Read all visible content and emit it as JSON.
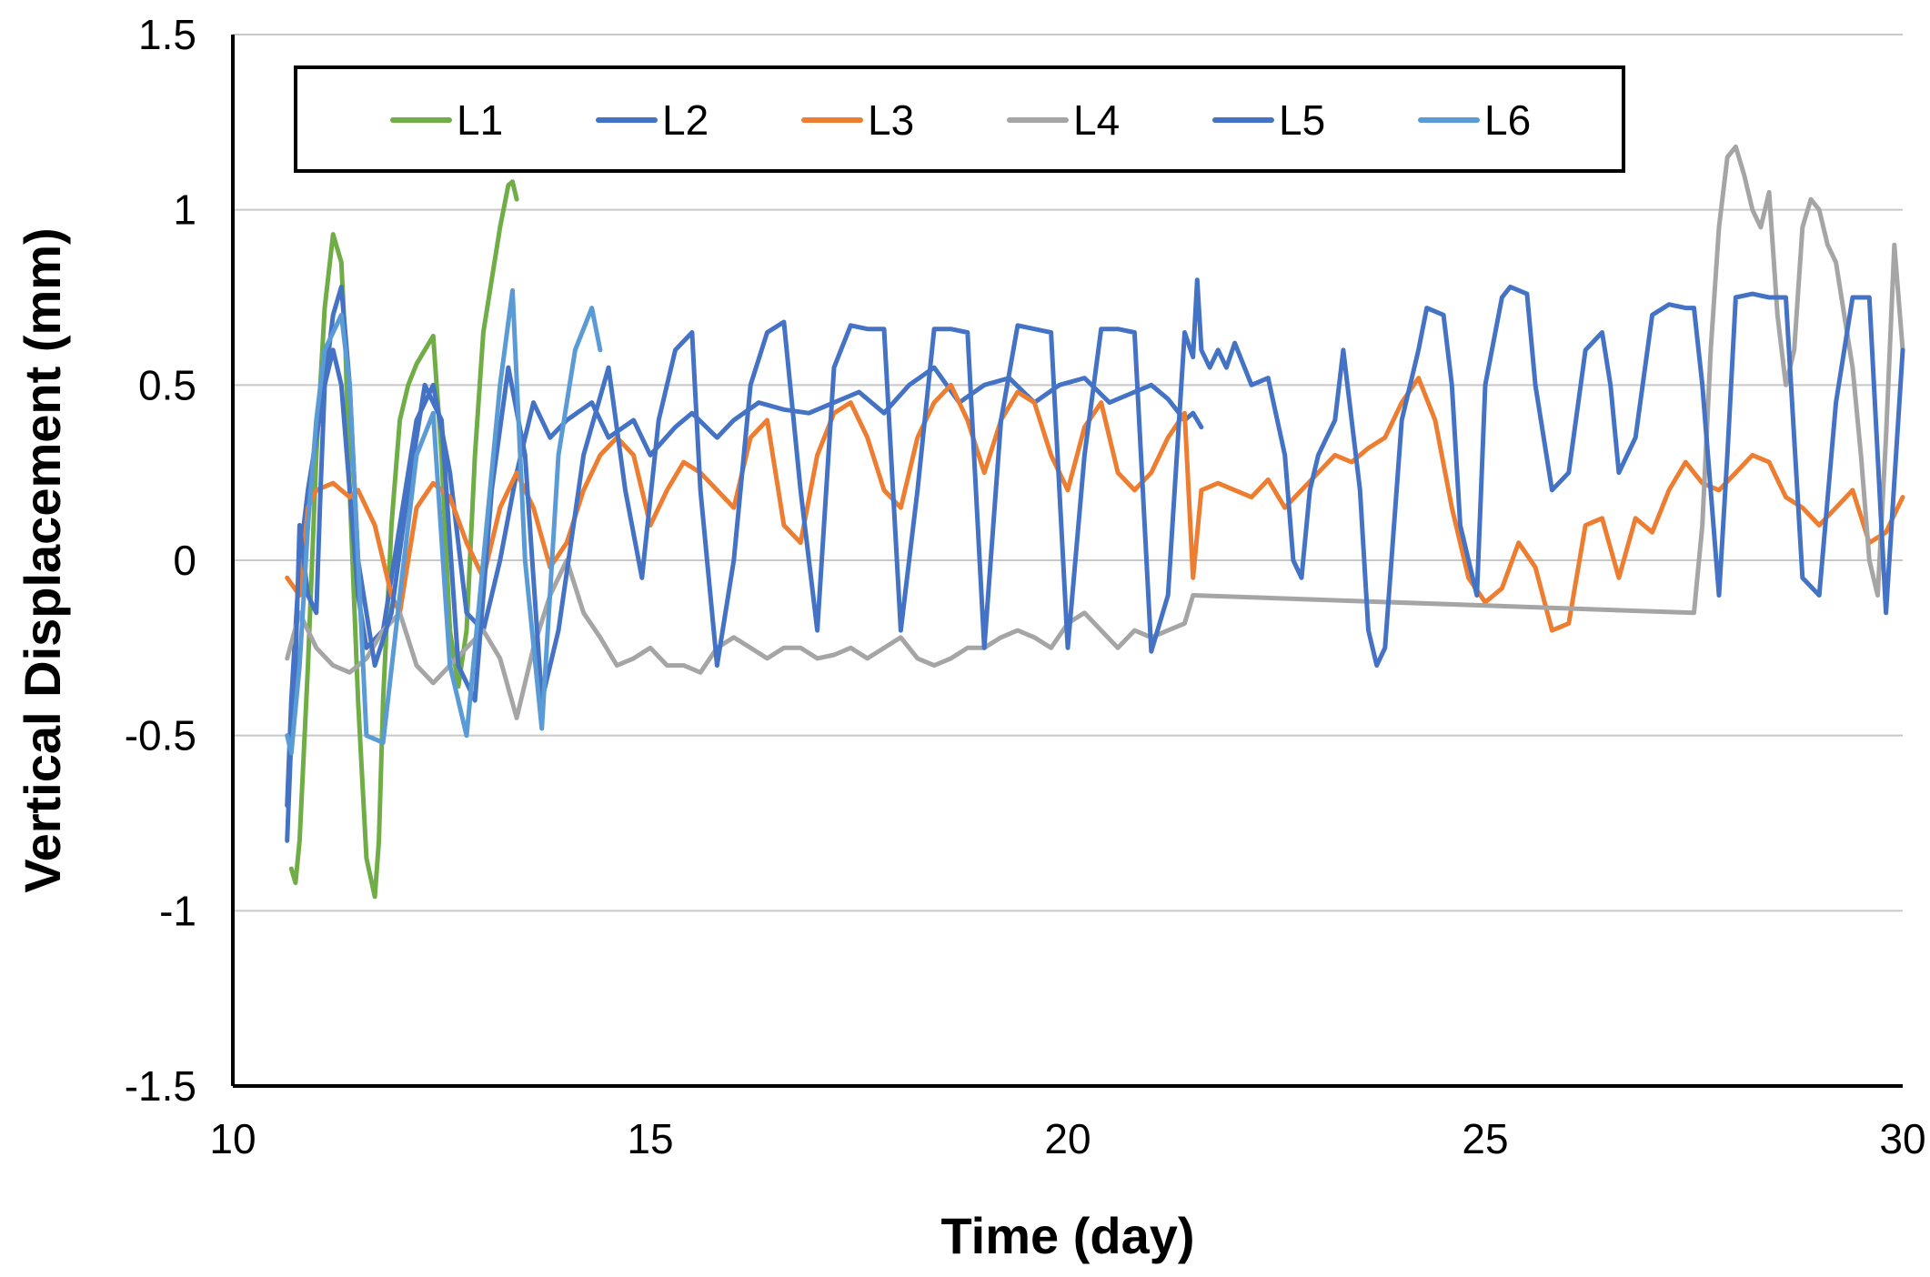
{
  "chart_data": {
    "type": "line",
    "title": "",
    "xlabel": "Time (day)",
    "ylabel": "Vertical Displacement (mm)",
    "xlim": [
      10,
      30
    ],
    "ylim": [
      -1.5,
      1.5
    ],
    "xticks": [
      10,
      15,
      20,
      25,
      30
    ],
    "xtick_labels": [
      "10",
      "15",
      "20",
      "25",
      "30"
    ],
    "yticks": [
      1.5,
      1,
      0.5,
      0,
      -0.5,
      -1,
      -1.5
    ],
    "ytick_labels": [
      "1.5",
      "1",
      "0.5",
      "0",
      "-0.5",
      "-1",
      "-1.5"
    ],
    "grid": true,
    "legend_position": "top",
    "series": [
      {
        "name": "L1",
        "color": "#70AD47",
        "x": [
          10.7,
          10.75,
          10.8,
          10.9,
          11.0,
          11.1,
          11.2,
          11.3,
          11.35,
          11.4,
          11.5,
          11.6,
          11.7,
          11.75,
          11.8,
          11.9,
          12.0,
          12.1,
          12.2,
          12.3,
          12.4,
          12.5,
          12.6,
          12.7,
          12.8,
          12.9,
          13.0,
          13.1,
          13.2,
          13.3,
          13.35,
          13.4
        ],
        "y": [
          -0.88,
          -0.92,
          -0.8,
          -0.3,
          0.3,
          0.72,
          0.93,
          0.85,
          0.6,
          0.2,
          -0.4,
          -0.85,
          -0.96,
          -0.8,
          -0.4,
          0.1,
          0.4,
          0.5,
          0.56,
          0.6,
          0.64,
          0.3,
          -0.2,
          -0.36,
          -0.2,
          0.3,
          0.65,
          0.8,
          0.95,
          1.07,
          1.08,
          1.03
        ]
      },
      {
        "name": "L2",
        "color": "#4472C4",
        "x": [
          10.65,
          10.7,
          10.8,
          10.9,
          11.0,
          11.1,
          11.2,
          11.3,
          11.4,
          11.5,
          11.6,
          11.8,
          12.0,
          12.2,
          12.4,
          12.6,
          12.8,
          13.0,
          13.2,
          13.4,
          13.6,
          13.8,
          14.0,
          14.3,
          14.5,
          14.8,
          15.0,
          15.3,
          15.5,
          15.8,
          16.0,
          16.3,
          16.6,
          16.9,
          17.2,
          17.5,
          17.8,
          18.1,
          18.4,
          18.7,
          19.0,
          19.3,
          19.6,
          19.9,
          20.2,
          20.5,
          20.8,
          21.0,
          21.2,
          21.4,
          21.5,
          21.6
        ],
        "y": [
          -0.7,
          -0.4,
          0.0,
          0.2,
          0.35,
          0.5,
          0.6,
          0.5,
          0.2,
          -0.1,
          -0.25,
          -0.2,
          0.1,
          0.4,
          0.5,
          0.25,
          -0.15,
          -0.2,
          0.0,
          0.25,
          0.45,
          0.35,
          0.4,
          0.45,
          0.35,
          0.4,
          0.3,
          0.38,
          0.42,
          0.35,
          0.4,
          0.45,
          0.43,
          0.42,
          0.45,
          0.48,
          0.42,
          0.5,
          0.55,
          0.45,
          0.5,
          0.52,
          0.45,
          0.5,
          0.52,
          0.45,
          0.48,
          0.5,
          0.46,
          0.4,
          0.42,
          0.38
        ]
      },
      {
        "name": "L3",
        "color": "#ED7D31",
        "x": [
          10.65,
          10.8,
          10.9,
          11.0,
          11.2,
          11.4,
          11.5,
          11.7,
          11.9,
          12.0,
          12.2,
          12.4,
          12.6,
          12.8,
          13.0,
          13.2,
          13.4,
          13.6,
          13.8,
          14.0,
          14.2,
          14.4,
          14.6,
          14.8,
          15.0,
          15.2,
          15.4,
          15.6,
          15.8,
          16.0,
          16.2,
          16.4,
          16.6,
          16.8,
          17.0,
          17.2,
          17.4,
          17.6,
          17.8,
          18.0,
          18.2,
          18.4,
          18.6,
          18.8,
          19.0,
          19.2,
          19.4,
          19.6,
          19.8,
          20.0,
          20.2,
          20.4,
          20.6,
          20.8,
          21.0,
          21.2,
          21.4,
          21.5,
          21.6,
          21.8,
          22.0,
          22.2,
          22.4,
          22.6,
          22.8,
          23.0,
          23.2,
          23.4,
          23.6,
          23.8,
          24.0,
          24.2,
          24.4,
          24.6,
          24.8,
          25.0,
          25.2,
          25.4,
          25.6,
          25.8,
          26.0,
          26.2,
          26.4,
          26.6,
          26.8,
          27.0,
          27.2,
          27.4,
          27.6,
          27.8,
          28.0,
          28.2,
          28.4,
          28.6,
          28.8,
          29.0,
          29.2,
          29.4,
          29.6,
          29.8,
          30.0
        ],
        "y": [
          -0.05,
          -0.1,
          0.15,
          0.2,
          0.22,
          0.18,
          0.2,
          0.1,
          -0.1,
          -0.15,
          0.15,
          0.22,
          0.18,
          0.05,
          -0.05,
          0.15,
          0.25,
          0.15,
          -0.02,
          0.05,
          0.2,
          0.3,
          0.35,
          0.3,
          0.1,
          0.2,
          0.28,
          0.25,
          0.2,
          0.15,
          0.35,
          0.4,
          0.1,
          0.05,
          0.3,
          0.42,
          0.45,
          0.35,
          0.2,
          0.15,
          0.35,
          0.45,
          0.5,
          0.4,
          0.25,
          0.4,
          0.48,
          0.45,
          0.3,
          0.2,
          0.38,
          0.45,
          0.25,
          0.2,
          0.25,
          0.35,
          0.42,
          -0.05,
          0.2,
          0.22,
          0.2,
          0.18,
          0.23,
          0.15,
          0.2,
          0.25,
          0.3,
          0.28,
          0.32,
          0.35,
          0.45,
          0.52,
          0.4,
          0.15,
          -0.05,
          -0.12,
          -0.08,
          0.05,
          -0.02,
          -0.2,
          -0.18,
          0.1,
          0.12,
          -0.05,
          0.12,
          0.08,
          0.2,
          0.28,
          0.22,
          0.2,
          0.25,
          0.3,
          0.28,
          0.18,
          0.15,
          0.1,
          0.15,
          0.2,
          0.05,
          0.08,
          0.18
        ]
      },
      {
        "name": "L4",
        "color": "#A5A5A5",
        "x": [
          10.65,
          10.8,
          11.0,
          11.2,
          11.4,
          11.6,
          11.8,
          12.0,
          12.2,
          12.4,
          12.6,
          12.8,
          13.0,
          13.2,
          13.4,
          13.6,
          13.8,
          14.0,
          14.2,
          14.4,
          14.6,
          14.8,
          15.0,
          15.2,
          15.4,
          15.6,
          15.8,
          16.0,
          16.2,
          16.4,
          16.6,
          16.8,
          17.0,
          17.2,
          17.4,
          17.6,
          17.8,
          18.0,
          18.2,
          18.4,
          18.6,
          18.8,
          19.0,
          19.2,
          19.4,
          19.6,
          19.8,
          20.0,
          20.2,
          20.4,
          20.6,
          20.8,
          21.0,
          21.2,
          21.4,
          21.5,
          27.5,
          27.6,
          27.7,
          27.8,
          27.9,
          28.0,
          28.1,
          28.2,
          28.3,
          28.4,
          28.5,
          28.6,
          28.7,
          28.8,
          28.9,
          29.0,
          29.1,
          29.2,
          29.3,
          29.4,
          29.5,
          29.6,
          29.7,
          29.8,
          29.9,
          30.0
        ],
        "y": [
          -0.28,
          -0.15,
          -0.25,
          -0.3,
          -0.32,
          -0.28,
          -0.2,
          -0.15,
          -0.3,
          -0.35,
          -0.3,
          -0.25,
          -0.2,
          -0.28,
          -0.45,
          -0.25,
          -0.1,
          0.0,
          -0.15,
          -0.22,
          -0.3,
          -0.28,
          -0.25,
          -0.3,
          -0.3,
          -0.32,
          -0.25,
          -0.22,
          -0.25,
          -0.28,
          -0.25,
          -0.25,
          -0.28,
          -0.27,
          -0.25,
          -0.28,
          -0.25,
          -0.22,
          -0.28,
          -0.3,
          -0.28,
          -0.25,
          -0.25,
          -0.22,
          -0.2,
          -0.22,
          -0.25,
          -0.18,
          -0.15,
          -0.2,
          -0.25,
          -0.2,
          -0.22,
          -0.2,
          -0.18,
          -0.1,
          -0.15,
          0.1,
          0.6,
          0.95,
          1.15,
          1.18,
          1.1,
          1.0,
          0.95,
          1.05,
          0.7,
          0.5,
          0.6,
          0.95,
          1.03,
          1.0,
          0.9,
          0.85,
          0.7,
          0.55,
          0.3,
          0.0,
          -0.1,
          0.35,
          0.9,
          0.6
        ]
      },
      {
        "name": "L5",
        "color": "#4472C4",
        "x": [
          10.65,
          10.7,
          10.75,
          10.8,
          10.9,
          11.0,
          11.05,
          11.1,
          11.2,
          11.3,
          11.4,
          11.5,
          11.7,
          11.9,
          12.1,
          12.3,
          12.5,
          12.7,
          12.9,
          13.1,
          13.3,
          13.5,
          13.7,
          13.9,
          14.2,
          14.5,
          14.7,
          14.9,
          15.1,
          15.3,
          15.5,
          15.6,
          15.8,
          16.0,
          16.2,
          16.4,
          16.6,
          16.8,
          17.0,
          17.2,
          17.4,
          17.6,
          17.8,
          18.0,
          18.2,
          18.4,
          18.6,
          18.8,
          19.0,
          19.2,
          19.4,
          19.6,
          19.8,
          20.0,
          20.2,
          20.4,
          20.6,
          20.8,
          21.0,
          21.2,
          21.4,
          21.5,
          21.55,
          21.6,
          21.7,
          21.8,
          21.9,
          22.0,
          22.2,
          22.4,
          22.6,
          22.7,
          22.8,
          22.9,
          23.0,
          23.2,
          23.3,
          23.5,
          23.6,
          23.7,
          23.8,
          24.0,
          24.2,
          24.3,
          24.5,
          24.6,
          24.7,
          24.9,
          25.0,
          25.2,
          25.3,
          25.5,
          25.6,
          25.8,
          26.0,
          26.2,
          26.4,
          26.5,
          26.6,
          26.8,
          27.0,
          27.2,
          27.4,
          27.5,
          27.6,
          27.8,
          27.9,
          28.0,
          28.2,
          28.4,
          28.6,
          28.8,
          29.0,
          29.2,
          29.4,
          29.6,
          29.8,
          30.0
        ],
        "y": [
          -0.8,
          -0.5,
          -0.3,
          0.1,
          -0.1,
          -0.15,
          0.2,
          0.5,
          0.7,
          0.78,
          0.5,
          0.0,
          -0.3,
          -0.15,
          0.2,
          0.5,
          0.4,
          -0.3,
          -0.4,
          0.2,
          0.55,
          0.3,
          -0.4,
          -0.2,
          0.3,
          0.55,
          0.2,
          -0.05,
          0.4,
          0.6,
          0.65,
          0.2,
          -0.3,
          0.0,
          0.5,
          0.65,
          0.68,
          0.2,
          -0.2,
          0.55,
          0.67,
          0.66,
          0.66,
          -0.2,
          0.2,
          0.66,
          0.66,
          0.65,
          -0.25,
          0.4,
          0.67,
          0.66,
          0.65,
          -0.25,
          0.3,
          0.66,
          0.66,
          0.65,
          -0.26,
          -0.1,
          0.65,
          0.58,
          0.8,
          0.6,
          0.55,
          0.6,
          0.55,
          0.62,
          0.5,
          0.52,
          0.3,
          0.0,
          -0.05,
          0.2,
          0.3,
          0.4,
          0.6,
          0.2,
          -0.2,
          -0.3,
          -0.25,
          0.4,
          0.6,
          0.72,
          0.7,
          0.5,
          0.1,
          -0.1,
          0.5,
          0.75,
          0.78,
          0.76,
          0.5,
          0.2,
          0.25,
          0.6,
          0.65,
          0.5,
          0.25,
          0.35,
          0.7,
          0.73,
          0.72,
          0.72,
          0.5,
          -0.1,
          0.3,
          0.75,
          0.76,
          0.75,
          0.75,
          -0.05,
          -0.1,
          0.45,
          0.75,
          0.75,
          -0.15,
          0.6
        ]
      },
      {
        "name": "L6",
        "color": "#5B9BD5",
        "x": [
          10.65,
          10.7,
          10.8,
          10.9,
          11.0,
          11.1,
          11.2,
          11.3,
          11.4,
          11.5,
          11.6,
          11.8,
          12.0,
          12.2,
          12.4,
          12.6,
          12.8,
          13.0,
          13.2,
          13.35,
          13.5,
          13.7,
          13.9,
          14.1,
          14.3,
          14.4
        ],
        "y": [
          -0.5,
          -0.55,
          -0.3,
          0.1,
          0.4,
          0.6,
          0.65,
          0.7,
          0.5,
          0.0,
          -0.5,
          -0.52,
          -0.1,
          0.3,
          0.42,
          -0.3,
          -0.5,
          0.0,
          0.5,
          0.77,
          0.0,
          -0.48,
          0.3,
          0.6,
          0.72,
          0.6
        ]
      }
    ]
  }
}
